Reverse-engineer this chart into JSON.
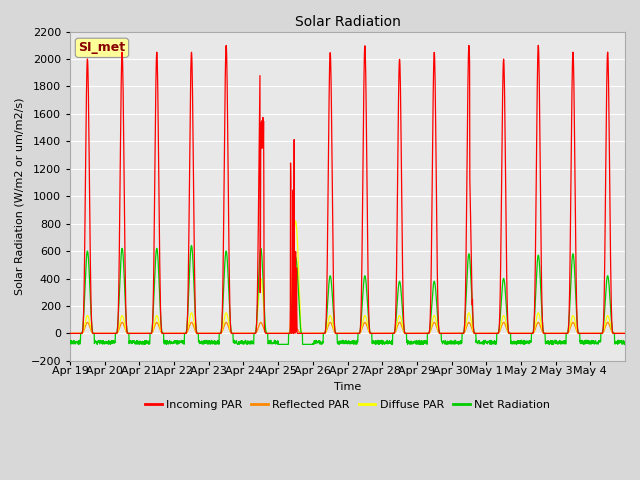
{
  "title": "Solar Radiation",
  "ylabel": "Solar Radiation (W/m2 or um/m2/s)",
  "xlabel": "Time",
  "ylim": [
    -200,
    2200
  ],
  "yticks": [
    -200,
    0,
    200,
    400,
    600,
    800,
    1000,
    1200,
    1400,
    1600,
    1800,
    2000,
    2200
  ],
  "num_days": 16,
  "legend_label": "SI_met",
  "series_labels": [
    "Incoming PAR",
    "Reflected PAR",
    "Diffuse PAR",
    "Net Radiation"
  ],
  "series_colors": [
    "#ff0000",
    "#ff8800",
    "#ffff00",
    "#00cc00"
  ],
  "background_color": "#d8d8d8",
  "plot_bg_color": "#e8e8e8",
  "grid_color": "#ffffff",
  "day_labels": [
    "Apr 19",
    "Apr 20",
    "Apr 21",
    "Apr 22",
    "Apr 23",
    "Apr 24",
    "Apr 25",
    "Apr 26",
    "Apr 27",
    "Apr 28",
    "Apr 29",
    "Apr 30",
    "May 1",
    "May 2",
    "May 3",
    "May 4"
  ],
  "title_fontsize": 10,
  "axis_fontsize": 8,
  "tick_fontsize": 8,
  "legend_fontsize": 8,
  "figsize": [
    6.4,
    4.8
  ],
  "dpi": 100
}
